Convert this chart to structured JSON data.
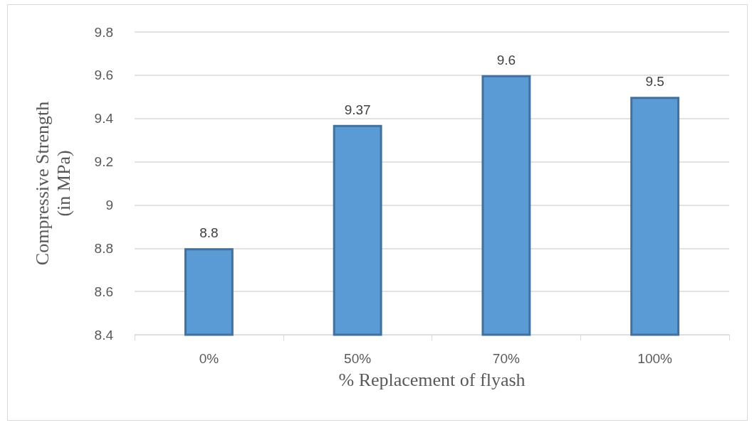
{
  "chart_data": {
    "type": "bar",
    "xlabel": "% Replacement of flyash",
    "ylabel": "Compressive Strength\n(in MPa)",
    "categories": [
      "0%",
      "50%",
      "70%",
      "100%"
    ],
    "values": [
      8.8,
      9.37,
      9.6,
      9.5
    ],
    "color": "#5b9bd5",
    "ylim": [
      8.4,
      9.8
    ],
    "yticks": [
      8.4,
      8.6,
      8.8,
      9,
      9.2,
      9.4,
      9.6,
      9.8
    ],
    "grid": "y",
    "data_labels": true
  }
}
